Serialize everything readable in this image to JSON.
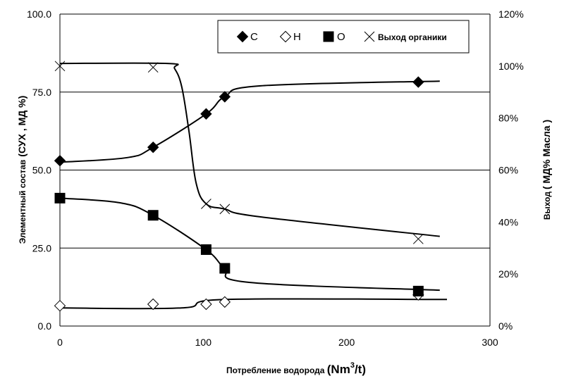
{
  "chart_data": {
    "type": "line",
    "xlabel": {
      "main": "Потребление водорода ",
      "unit_pre": "(Nm",
      "unit_sup": "3",
      "unit_post": "/t)"
    },
    "ylabel_left": {
      "main": "Элементный состав",
      "unit": "(СУХ , МД %)"
    },
    "ylabel_right": {
      "main": "Выход",
      "unit": "( МД% Масла )"
    },
    "xlim": [
      0,
      300
    ],
    "ylim_left": [
      0,
      100
    ],
    "ylim_right": [
      0,
      120
    ],
    "x_ticks": [
      {
        "value": 0,
        "label": "0"
      },
      {
        "value": 100,
        "label": "100"
      },
      {
        "value": 200,
        "label": "200"
      },
      {
        "value": 300,
        "label": "300"
      }
    ],
    "y_left_ticks": [
      {
        "value": 0,
        "label": "0.0"
      },
      {
        "value": 25,
        "label": "25.0"
      },
      {
        "value": 50,
        "label": "50.0"
      },
      {
        "value": 75,
        "label": "75.0"
      },
      {
        "value": 100,
        "label": "100.0"
      }
    ],
    "y_right_ticks": [
      {
        "value": 0,
        "label": "0%"
      },
      {
        "value": 20,
        "label": "20%"
      },
      {
        "value": 40,
        "label": "40%"
      },
      {
        "value": 60,
        "label": "60%"
      },
      {
        "value": 80,
        "label": "80%"
      },
      {
        "value": 100,
        "label": "100%"
      },
      {
        "value": 120,
        "label": "120%"
      }
    ],
    "gridlines_y_left": [
      25,
      50,
      75
    ],
    "legend": {
      "position": "top-right"
    },
    "series": [
      {
        "name": "C",
        "marker": "diamond-filled",
        "axis": "left",
        "points": [
          [
            0,
            53
          ],
          [
            65,
            57.3
          ],
          [
            102,
            68
          ],
          [
            115,
            73.5
          ],
          [
            250,
            78.2
          ]
        ],
        "curve": [
          [
            0,
            52.5
          ],
          [
            47,
            54
          ],
          [
            65,
            57.3
          ],
          [
            102,
            68
          ],
          [
            115,
            73.5
          ],
          [
            140,
            77
          ],
          [
            265,
            78.5
          ]
        ]
      },
      {
        "name": "H",
        "marker": "diamond-open",
        "axis": "left",
        "points": [
          [
            0,
            6.5
          ],
          [
            65,
            7
          ],
          [
            102,
            7
          ],
          [
            115,
            7.7
          ],
          [
            250,
            10
          ]
        ],
        "curve": [
          [
            0,
            5.8
          ],
          [
            85,
            5.8
          ],
          [
            115,
            8.5
          ],
          [
            270,
            8.5
          ]
        ]
      },
      {
        "name": "O",
        "marker": "square-filled",
        "axis": "left",
        "points": [
          [
            0,
            41
          ],
          [
            65,
            35.5
          ],
          [
            102,
            24.5
          ],
          [
            115,
            18.5
          ],
          [
            250,
            11.2
          ]
        ],
        "curve": [
          [
            0,
            41
          ],
          [
            42,
            39.5
          ],
          [
            65,
            35.5
          ],
          [
            102,
            24.5
          ],
          [
            115,
            18.5
          ],
          [
            132,
            14
          ],
          [
            265,
            11.5
          ]
        ]
      },
      {
        "name": "Выход органики",
        "marker": "x",
        "axis": "right",
        "points": [
          [
            0,
            100
          ],
          [
            65,
            99.5
          ],
          [
            102,
            47
          ],
          [
            115,
            45
          ],
          [
            250,
            33.5
          ]
        ],
        "curve": [
          [
            0,
            101
          ],
          [
            75,
            101
          ],
          [
            80,
            99
          ],
          [
            85,
            92
          ],
          [
            90,
            75
          ],
          [
            95,
            55
          ],
          [
            102,
            47
          ],
          [
            115,
            45
          ],
          [
            140,
            42
          ],
          [
            265,
            34.5
          ]
        ]
      }
    ]
  }
}
